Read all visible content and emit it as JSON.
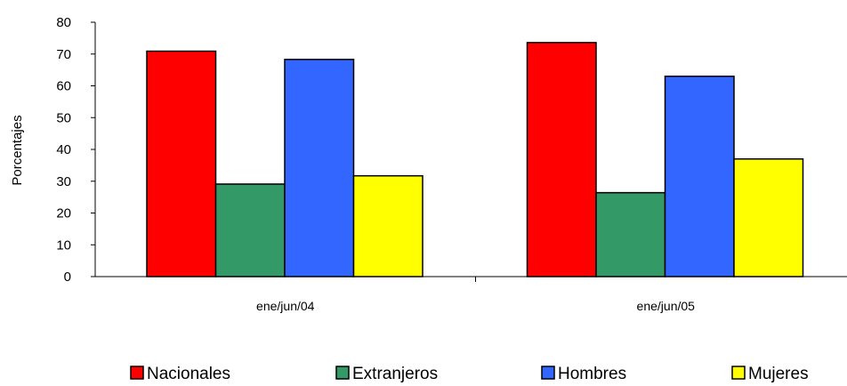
{
  "chart_data": {
    "type": "bar",
    "categories": [
      "ene/jun/04",
      "ene/jun/05"
    ],
    "series": [
      {
        "name": "Nacionales",
        "values": [
          70.9,
          73.6
        ],
        "color": "#ff0000"
      },
      {
        "name": "Extranjeros",
        "values": [
          29.1,
          26.4
        ],
        "color": "#339966"
      },
      {
        "name": "Hombres",
        "values": [
          68.3,
          63.0
        ],
        "color": "#3366ff"
      },
      {
        "name": "Mujeres",
        "values": [
          31.7,
          37.0
        ],
        "color": "#ffff00"
      }
    ],
    "ylabel": "Porcentajes",
    "ylim": [
      0,
      80
    ],
    "yticks": [
      "0",
      "10",
      "20",
      "30",
      "40",
      "50",
      "60",
      "70",
      "80"
    ],
    "grid": false,
    "legend_position": "bottom"
  }
}
